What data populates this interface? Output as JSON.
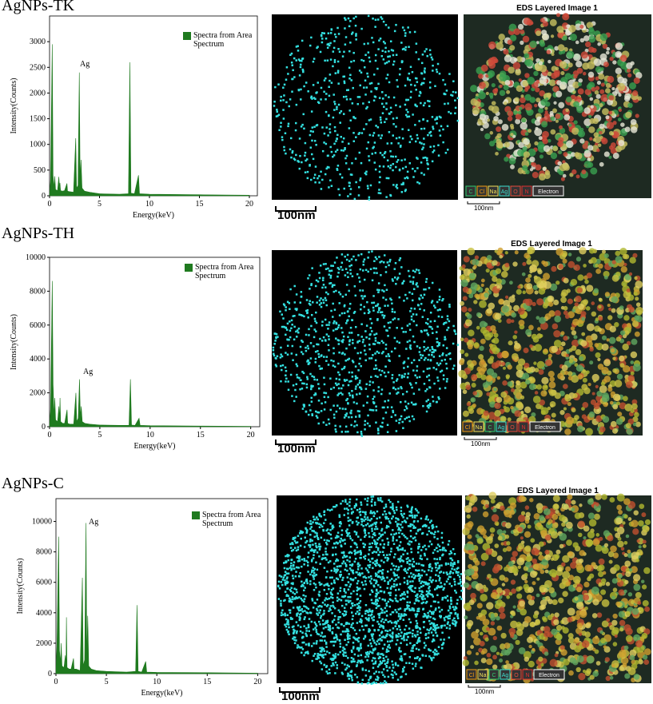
{
  "chart_data": [
    {
      "type": "area",
      "x_label": "Energy(keV)",
      "y_label": "Intensity(Counts)",
      "annotation": "Ag",
      "x": [
        0,
        0.1,
        0.27,
        0.35,
        0.45,
        0.52,
        0.6,
        0.8,
        0.93,
        1.0,
        1.04,
        1.1,
        1.3,
        1.5,
        1.74,
        1.8,
        2.0,
        2.4,
        2.62,
        2.7,
        2.85,
        2.98,
        3.06,
        3.15,
        3.25,
        3.5,
        4.0,
        5.0,
        7.0,
        7.9,
        8.04,
        8.15,
        8.5,
        8.9,
        9.0,
        10.0,
        15.0,
        20.0
      ],
      "series": [
        {
          "name": "Spectra from Area Spectrum",
          "color": "#1f7a1f",
          "values": [
            0,
            300,
            2950,
            400,
            150,
            380,
            120,
            100,
            370,
            150,
            250,
            100,
            90,
            100,
            240,
            90,
            80,
            70,
            1120,
            150,
            200,
            2400,
            300,
            700,
            150,
            90,
            70,
            40,
            30,
            40,
            2600,
            50,
            40,
            400,
            40,
            30,
            20,
            10
          ]
        }
      ],
      "xlim": [
        0,
        20.8
      ],
      "xticks": [
        0,
        5,
        10,
        15,
        20
      ],
      "ylim": [
        0,
        3500
      ],
      "yticks": [
        0,
        500,
        1000,
        1500,
        2000,
        2500,
        3000
      ]
    },
    {
      "type": "area",
      "x_label": "Energy(keV)",
      "y_label": "Intensity(Counts)",
      "annotation": "Ag",
      "x": [
        0,
        0.1,
        0.27,
        0.35,
        0.45,
        0.52,
        0.6,
        0.8,
        0.93,
        1.0,
        1.04,
        1.1,
        1.3,
        1.5,
        1.74,
        1.8,
        2.0,
        2.4,
        2.62,
        2.7,
        2.85,
        2.98,
        3.06,
        3.15,
        3.25,
        3.5,
        4.0,
        5.0,
        7.0,
        7.9,
        8.04,
        8.15,
        8.5,
        8.9,
        9.0,
        10.0,
        15.0,
        20.0
      ],
      "series": [
        {
          "name": "Spectra from Area Spectrum",
          "color": "#1f7a1f",
          "values": [
            0,
            1000,
            8600,
            2500,
            600,
            1700,
            400,
            300,
            1200,
            400,
            1700,
            300,
            200,
            200,
            1000,
            200,
            150,
            150,
            2000,
            300,
            500,
            2800,
            600,
            1200,
            300,
            200,
            150,
            100,
            80,
            80,
            2800,
            100,
            80,
            500,
            80,
            60,
            40,
            20
          ]
        }
      ],
      "xlim": [
        0,
        20.9
      ],
      "xticks": [
        0,
        5,
        10,
        15,
        20
      ],
      "ylim": [
        0,
        10000
      ],
      "yticks": [
        0,
        2000,
        4000,
        6000,
        8000,
        10000
      ]
    },
    {
      "type": "area",
      "x_label": "Energy(keV)",
      "y_label": "Intensity(Counts)",
      "annotation": "Ag",
      "x": [
        0,
        0.1,
        0.27,
        0.35,
        0.45,
        0.52,
        0.6,
        0.8,
        0.93,
        1.0,
        1.04,
        1.1,
        1.3,
        1.5,
        1.74,
        1.8,
        2.0,
        2.4,
        2.62,
        2.7,
        2.85,
        2.98,
        3.06,
        3.15,
        3.25,
        3.5,
        4.0,
        5.0,
        7.0,
        7.9,
        8.04,
        8.15,
        8.5,
        8.9,
        9.0,
        10.0,
        15.0,
        20.0
      ],
      "series": [
        {
          "name": "Spectra from Area Spectrum",
          "color": "#1f7a1f",
          "values": [
            0,
            1800,
            9000,
            1500,
            700,
            2000,
            500,
            400,
            1200,
            500,
            3700,
            400,
            300,
            300,
            1000,
            300,
            300,
            200,
            6300,
            500,
            900,
            9900,
            1000,
            3800,
            500,
            300,
            200,
            150,
            100,
            150,
            4500,
            150,
            100,
            800,
            100,
            80,
            60,
            30
          ]
        }
      ],
      "xlim": [
        0,
        21
      ],
      "xticks": [
        0,
        5,
        10,
        15,
        20
      ],
      "ylim": [
        0,
        11500
      ],
      "yticks": [
        0,
        2000,
        4000,
        6000,
        8000,
        10000
      ]
    }
  ],
  "panels": [
    {
      "label": "AgNPs-TK",
      "map_scale": "100nm",
      "layered_title": "EDS Layered Image 1",
      "layered_scale": "100nm",
      "elements": [
        {
          "text": "C",
          "color": "#2ecc71"
        },
        {
          "text": "Cl",
          "color": "#f39c12"
        },
        {
          "text": "Na",
          "color": "#f1e05a"
        },
        {
          "text": "Ag",
          "color": "#3ce0d0"
        },
        {
          "text": "O",
          "color": "#e74c3c"
        },
        {
          "text": "N",
          "color": "#e03030"
        },
        {
          "text": "Electron",
          "color": "#ffffff"
        }
      ]
    },
    {
      "label": "AgNPs-TH",
      "map_scale": "100nm",
      "layered_title": "EDS Layered Image 1",
      "layered_scale": "100nm",
      "elements": [
        {
          "text": "Cl",
          "color": "#f39c12"
        },
        {
          "text": "Na",
          "color": "#f1e05a"
        },
        {
          "text": "C",
          "color": "#2ecc71"
        },
        {
          "text": "Ag",
          "color": "#3ce0d0"
        },
        {
          "text": "O",
          "color": "#e74c3c"
        },
        {
          "text": "N",
          "color": "#e03030"
        },
        {
          "text": "Electron",
          "color": "#ffffff"
        }
      ]
    },
    {
      "label": "AgNPs-C",
      "map_scale": "100nm",
      "layered_title": "EDS Layered Image 1",
      "layered_scale": "100nm",
      "elements": [
        {
          "text": "Cl",
          "color": "#f39c12"
        },
        {
          "text": "Na",
          "color": "#f1e05a"
        },
        {
          "text": "C",
          "color": "#2ecc71"
        },
        {
          "text": "Ag",
          "color": "#3ce0d0"
        },
        {
          "text": "O",
          "color": "#e74c3c"
        },
        {
          "text": "N",
          "color": "#e03030"
        },
        {
          "text": "Electron",
          "color": "#ffffff"
        }
      ]
    }
  ]
}
